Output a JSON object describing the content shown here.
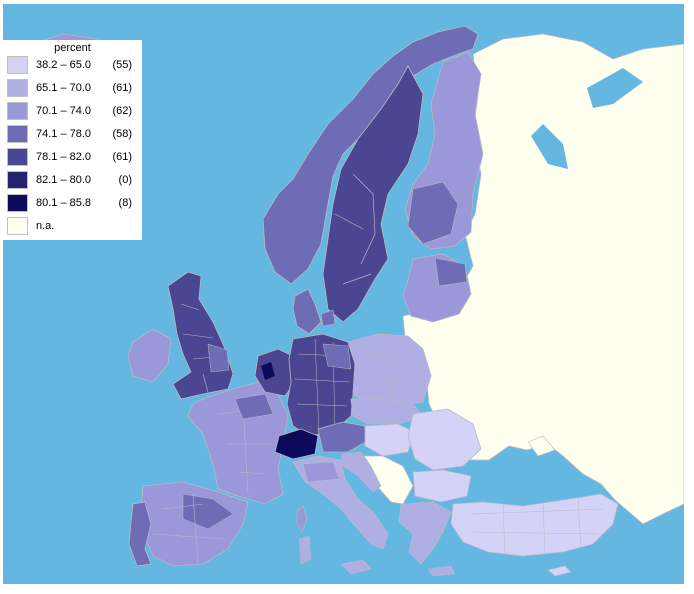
{
  "legend": {
    "title": "percent",
    "classes": [
      {
        "range": "38.2 – 65.0",
        "count": "(55)",
        "color": "#d4d3f7"
      },
      {
        "range": "65.1 – 70.0",
        "count": "(61)",
        "color": "#b0afe3"
      },
      {
        "range": "70.1 – 74.0",
        "count": "(62)",
        "color": "#9a98d8"
      },
      {
        "range": "74.1 – 78.0",
        "count": "(58)",
        "color": "#6f6cb6"
      },
      {
        "range": "78.1 – 82.0",
        "count": "(61)",
        "color": "#4a4691"
      },
      {
        "range": "82.1 – 80.0",
        "count": "(0)",
        "color": "#27246f"
      },
      {
        "range": "80.1 – 85.8",
        "count": "(8)",
        "color": "#0d0a5c"
      },
      {
        "range": "n.a.",
        "count": "",
        "color": "#fffff0"
      }
    ]
  },
  "colors": {
    "sea": "#63b7e1",
    "no_data": "#fffff0",
    "border": "#b8b8c8"
  }
}
